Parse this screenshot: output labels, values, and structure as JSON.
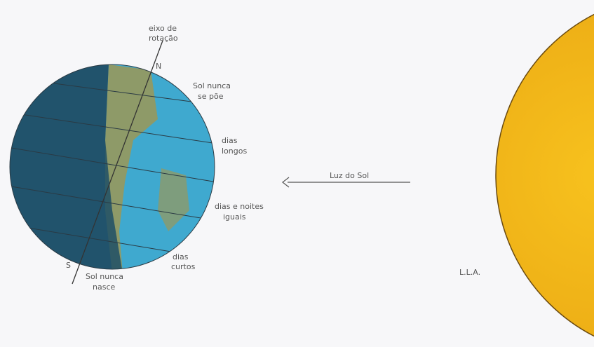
{
  "labels": {
    "axis": [
      "eixo de",
      "rotação"
    ],
    "north": "N",
    "south": "S",
    "midnight_sun": [
      "Sol nunca",
      "se põe"
    ],
    "long_days": [
      "dias",
      "longos"
    ],
    "sunlight": "Luz do Sol",
    "equal": [
      "dias e noites",
      "iguais"
    ],
    "short_days": [
      "dias",
      "curtos"
    ],
    "polar_night": [
      "Sol nunca",
      "nasce"
    ],
    "signature": "L.L.A."
  }
}
